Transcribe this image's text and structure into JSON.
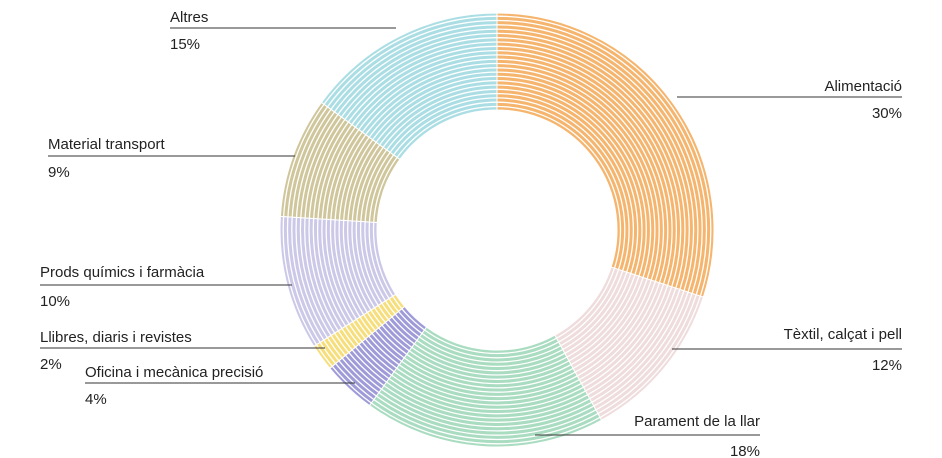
{
  "chart_data": {
    "type": "donut",
    "categories": [
      "Alimentació",
      "Tèxtil, calçat i pell",
      "Parament de la llar",
      "Oficina i mecànica precisió",
      "Llibres, diaris i revistes",
      "Prods químics i farmàcia",
      "Material transport",
      "Altres"
    ],
    "values": [
      30,
      12,
      18,
      4,
      2,
      10,
      9,
      15
    ],
    "value_labels": [
      "30%",
      "12%",
      "18%",
      "4%",
      "2%",
      "10%",
      "9%",
      "15%"
    ],
    "colors": [
      "#f5b56e",
      "#efdcdd",
      "#a9dcc0",
      "#9e9bd8",
      "#f7de7c",
      "#cbc8e8",
      "#d0c69c",
      "#abdee4"
    ]
  }
}
